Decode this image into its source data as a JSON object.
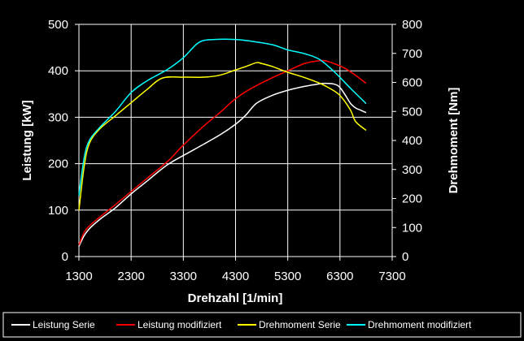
{
  "chart_data": {
    "type": "line",
    "title": "",
    "xlabel": "Drehzahl [1/min]",
    "ylabel_left": "Leistung [kW]",
    "ylabel_right": "Drehmoment [Nm]",
    "xlim": [
      1300,
      7300
    ],
    "ylim_left": [
      0,
      500
    ],
    "ylim_right": [
      0,
      800
    ],
    "x_ticks": [
      "1300",
      "2300",
      "3300",
      "4300",
      "5300",
      "6300",
      "7300"
    ],
    "y_left_ticks": [
      "0",
      "100",
      "200",
      "300",
      "400",
      "500"
    ],
    "y_right_ticks": [
      "0",
      "100",
      "200",
      "300",
      "400",
      "500",
      "600",
      "700",
      "800"
    ],
    "grid": true,
    "legend_position": "bottom",
    "series": [
      {
        "name": "Leistung Serie",
        "axis": "left",
        "color": "#ffffff",
        "x": [
          1300,
          1400,
          1500,
          1700,
          2000,
          2300,
          2600,
          3000,
          3500,
          4000,
          4300,
          4500,
          4700,
          5000,
          5300,
          5600,
          5800,
          6000,
          6200,
          6300,
          6400,
          6500,
          6600,
          6700,
          6800
        ],
        "y": [
          22,
          45,
          60,
          80,
          105,
          135,
          162,
          198,
          230,
          262,
          285,
          305,
          330,
          347,
          358,
          366,
          370,
          373,
          371,
          364,
          348,
          330,
          320,
          315,
          310
        ]
      },
      {
        "name": "Leistung modifiziert",
        "axis": "left",
        "color": "#ff0000",
        "x": [
          1300,
          1400,
          1500,
          1700,
          2000,
          2300,
          2600,
          3000,
          3300,
          3700,
          4000,
          4300,
          4600,
          5000,
          5300,
          5600,
          5800,
          6000,
          6200,
          6400,
          6600,
          6800
        ],
        "y": [
          25,
          52,
          66,
          85,
          112,
          140,
          168,
          205,
          240,
          282,
          310,
          340,
          362,
          385,
          400,
          415,
          420,
          422,
          415,
          405,
          390,
          373
        ]
      },
      {
        "name": "Drehmoment Serie",
        "axis": "right",
        "color": "#ffff00",
        "x": [
          1300,
          1400,
          1500,
          1700,
          2000,
          2300,
          2600,
          2900,
          3300,
          3700,
          4000,
          4300,
          4500,
          4700,
          4800,
          5000,
          5300,
          5600,
          5900,
          6100,
          6300,
          6500,
          6600,
          6800
        ],
        "y": [
          160,
          310,
          390,
          440,
          485,
          530,
          575,
          615,
          618,
          618,
          625,
          643,
          655,
          668,
          665,
          655,
          635,
          618,
          598,
          580,
          555,
          505,
          465,
          435
        ]
      },
      {
        "name": "Drehmoment modifiziert",
        "axis": "right",
        "color": "#00ffff",
        "x": [
          1300,
          1400,
          1500,
          1700,
          2000,
          2300,
          2600,
          3000,
          3300,
          3600,
          3900,
          4300,
          4600,
          5000,
          5300,
          5600,
          5900,
          6200,
          6500,
          6800
        ],
        "y": [
          210,
          340,
          400,
          445,
          500,
          565,
          605,
          645,
          685,
          738,
          748,
          748,
          742,
          730,
          712,
          700,
          680,
          635,
          580,
          527
        ]
      }
    ]
  }
}
